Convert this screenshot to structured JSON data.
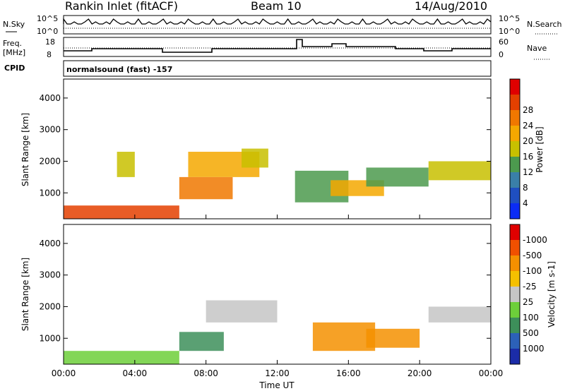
{
  "header": {
    "title": "Rankin Inlet (fitACF)",
    "beam": "Beam 10",
    "date": "14/Aug/2010"
  },
  "strip_labels": {
    "nsky": "N.Sky",
    "nsearch": "N.Search",
    "freq": "Freq.",
    "freq_unit": "[MHz]",
    "nave": "Nave",
    "cpid": "CPID",
    "cpid_value": "normalsound (fast) -157",
    "nsky_ticks": [
      "10^5",
      "10^0"
    ],
    "nsearch_ticks": [
      "10^5",
      "10^0"
    ],
    "freq_ticks": [
      "18",
      "8"
    ],
    "nave_ticks": [
      "60",
      "0"
    ]
  },
  "chart_data": [
    {
      "type": "heatmap",
      "panel": "power",
      "ylabel": "Slant Range [km]",
      "ylim": [
        180,
        4600
      ],
      "yticks": [
        1000,
        2000,
        3000,
        4000
      ],
      "xlabel": "Time UT",
      "xlim": [
        0,
        24
      ],
      "xticks": [
        "00:00",
        "04:00",
        "08:00",
        "12:00",
        "16:00",
        "20:00",
        "00:00"
      ],
      "colorbar": {
        "label": "Power [dB]",
        "ticks": [
          "4",
          "8",
          "12",
          "16",
          "20",
          "24",
          "28"
        ],
        "colors": [
          "#0b2cf5",
          "#1f4fc1",
          "#3a7fa8",
          "#4c9a4e",
          "#c8c000",
          "#f5a800",
          "#f07800",
          "#e44000",
          "#e00000"
        ]
      },
      "regions": [
        {
          "t0": 0.0,
          "t1": 6.5,
          "r0": 180,
          "r1": 600,
          "level": 28
        },
        {
          "t0": 3.0,
          "t1": 4.0,
          "r0": 1500,
          "r1": 2300,
          "level": 14
        },
        {
          "t0": 6.5,
          "t1": 9.5,
          "r0": 800,
          "r1": 1500,
          "level": 24
        },
        {
          "t0": 7.0,
          "t1": 11.0,
          "r0": 1500,
          "r1": 2300,
          "level": 18
        },
        {
          "t0": 10.0,
          "t1": 11.5,
          "r0": 1800,
          "r1": 2400,
          "level": 16
        },
        {
          "t0": 13.0,
          "t1": 16.0,
          "r0": 700,
          "r1": 1700,
          "level": 12
        },
        {
          "t0": 15.0,
          "t1": 18.0,
          "r0": 900,
          "r1": 1400,
          "level": 20
        },
        {
          "t0": 17.0,
          "t1": 20.5,
          "r0": 1200,
          "r1": 1800,
          "level": 10
        },
        {
          "t0": 20.5,
          "t1": 24.0,
          "r0": 1400,
          "r1": 2000,
          "level": 14
        }
      ]
    },
    {
      "type": "heatmap",
      "panel": "velocity",
      "ylabel": "Slant Range [km]",
      "ylim": [
        180,
        4600
      ],
      "yticks": [
        1000,
        2000,
        3000,
        4000
      ],
      "xlabel": "Time UT",
      "xlim": [
        0,
        24
      ],
      "xticks": [
        "00:00",
        "04:00",
        "08:00",
        "12:00",
        "16:00",
        "20:00",
        "00:00"
      ],
      "colorbar": {
        "label": "Velocity [m s-1]",
        "ticks": [
          "1000",
          "500",
          "100",
          "25",
          "-25",
          "-100",
          "-500",
          "-1000"
        ],
        "colors": [
          "#1b2ca8",
          "#2c61b8",
          "#3d8f5a",
          "#6dcf3a",
          "#c6c6c6",
          "#f5c000",
          "#f59000",
          "#f05000",
          "#e00000"
        ]
      },
      "regions": [
        {
          "t0": 0.0,
          "t1": 6.5,
          "r0": 180,
          "r1": 600,
          "level": 60
        },
        {
          "t0": 6.5,
          "t1": 9.0,
          "r0": 600,
          "r1": 1200,
          "level": 300
        },
        {
          "t0": 8.0,
          "t1": 12.0,
          "r0": 1500,
          "r1": 2200,
          "level": 0
        },
        {
          "t0": 14.0,
          "t1": 17.5,
          "r0": 600,
          "r1": 1500,
          "level": -500
        },
        {
          "t0": 17.0,
          "t1": 20.0,
          "r0": 700,
          "r1": 1300,
          "level": -300
        },
        {
          "t0": 20.5,
          "t1": 24.0,
          "r0": 1500,
          "r1": 2000,
          "level": 0
        }
      ]
    }
  ]
}
